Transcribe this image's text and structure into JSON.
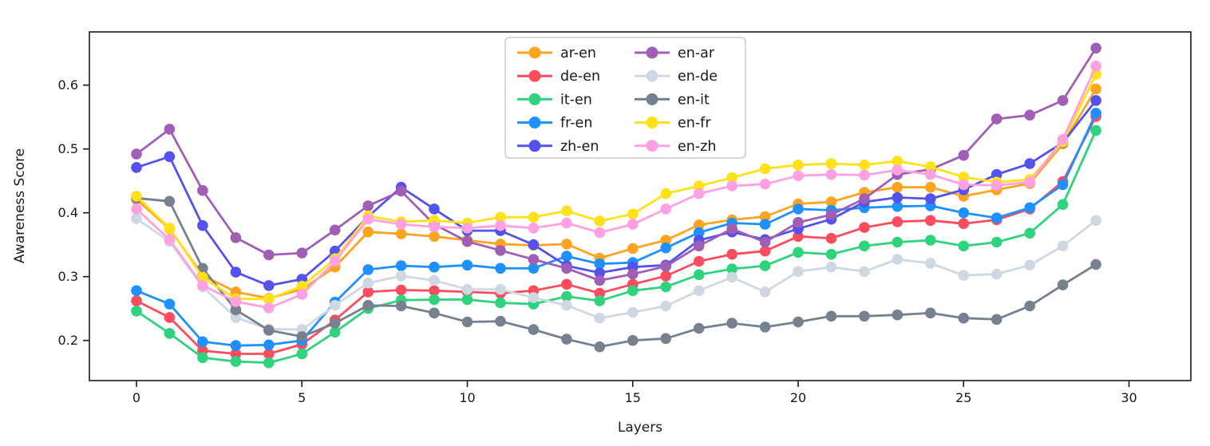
{
  "chart_data": {
    "type": "line",
    "title": "",
    "xlabel": "Layers",
    "ylabel": "Awareness Score",
    "x": [
      0,
      1,
      2,
      3,
      4,
      5,
      6,
      7,
      8,
      9,
      10,
      11,
      12,
      13,
      14,
      15,
      16,
      17,
      18,
      19,
      20,
      21,
      22,
      23,
      24,
      25,
      26,
      27,
      28,
      29
    ],
    "xticks": [
      0,
      5,
      10,
      15,
      20,
      25,
      30
    ],
    "yticks": [
      0.2,
      0.3,
      0.4,
      0.5,
      0.6
    ],
    "xlim": [
      -1.45,
      31.9
    ],
    "ylim": [
      0.137,
      0.683
    ],
    "grid": false,
    "legend_position": "upper center, 2 columns",
    "marker": "circle",
    "series": [
      {
        "name": "ar-en",
        "color": "#ffa321",
        "values": [
          0.421,
          0.375,
          0.302,
          0.276,
          0.266,
          0.28,
          0.315,
          0.37,
          0.367,
          0.363,
          0.357,
          0.351,
          0.349,
          0.351,
          0.329,
          0.344,
          0.357,
          0.381,
          0.389,
          0.394,
          0.414,
          0.417,
          0.432,
          0.44,
          0.44,
          0.426,
          0.436,
          0.446,
          0.508,
          0.594
        ]
      },
      {
        "name": "de-en",
        "color": "#fc4c5d",
        "values": [
          0.262,
          0.236,
          0.184,
          0.179,
          0.179,
          0.194,
          0.232,
          0.276,
          0.279,
          0.278,
          0.276,
          0.274,
          0.278,
          0.288,
          0.274,
          0.288,
          0.301,
          0.324,
          0.335,
          0.34,
          0.363,
          0.36,
          0.377,
          0.386,
          0.388,
          0.383,
          0.389,
          0.406,
          0.449,
          0.551
        ]
      },
      {
        "name": "it-en",
        "color": "#2fd27d",
        "values": [
          0.246,
          0.211,
          0.173,
          0.167,
          0.165,
          0.179,
          0.213,
          0.25,
          0.263,
          0.264,
          0.264,
          0.259,
          0.257,
          0.269,
          0.262,
          0.278,
          0.284,
          0.303,
          0.312,
          0.317,
          0.338,
          0.335,
          0.348,
          0.354,
          0.357,
          0.348,
          0.354,
          0.368,
          0.413,
          0.529
        ]
      },
      {
        "name": "fr-en",
        "color": "#1e90ff",
        "values": [
          0.278,
          0.257,
          0.198,
          0.192,
          0.193,
          0.2,
          0.26,
          0.311,
          0.317,
          0.315,
          0.318,
          0.313,
          0.313,
          0.332,
          0.32,
          0.322,
          0.345,
          0.369,
          0.384,
          0.382,
          0.406,
          0.404,
          0.408,
          0.41,
          0.411,
          0.4,
          0.392,
          0.408,
          0.444,
          0.556
        ]
      },
      {
        "name": "zh-en",
        "color": "#5352ed",
        "values": [
          0.471,
          0.488,
          0.38,
          0.307,
          0.286,
          0.296,
          0.34,
          0.394,
          0.44,
          0.406,
          0.372,
          0.372,
          0.35,
          0.317,
          0.306,
          0.315,
          0.318,
          0.357,
          0.37,
          0.358,
          0.375,
          0.39,
          0.417,
          0.424,
          0.422,
          0.436,
          0.46,
          0.477,
          0.51,
          0.576
        ]
      },
      {
        "name": "en-ar",
        "color": "#a05eb5",
        "values": [
          0.492,
          0.531,
          0.435,
          0.361,
          0.334,
          0.337,
          0.373,
          0.411,
          0.434,
          0.382,
          0.355,
          0.341,
          0.327,
          0.313,
          0.294,
          0.304,
          0.316,
          0.348,
          0.375,
          0.354,
          0.385,
          0.397,
          0.422,
          0.46,
          0.468,
          0.49,
          0.547,
          0.553,
          0.576,
          0.658
        ]
      },
      {
        "name": "en-de",
        "color": "#cfd8e2",
        "values": [
          0.391,
          0.355,
          0.284,
          0.236,
          0.218,
          0.217,
          0.255,
          0.29,
          0.301,
          0.294,
          0.28,
          0.28,
          0.267,
          0.255,
          0.235,
          0.244,
          0.254,
          0.278,
          0.299,
          0.276,
          0.308,
          0.315,
          0.308,
          0.327,
          0.321,
          0.302,
          0.304,
          0.318,
          0.348,
          0.388
        ]
      },
      {
        "name": "en-it",
        "color": "#76808f",
        "values": [
          0.423,
          0.418,
          0.313,
          0.248,
          0.216,
          0.206,
          0.227,
          0.255,
          0.254,
          0.243,
          0.229,
          0.23,
          0.217,
          0.202,
          0.19,
          0.2,
          0.203,
          0.219,
          0.227,
          0.221,
          0.229,
          0.238,
          0.238,
          0.24,
          0.243,
          0.235,
          0.233,
          0.254,
          0.287,
          0.319
        ]
      },
      {
        "name": "en-fr",
        "color": "#ffe11a",
        "values": [
          0.426,
          0.376,
          0.299,
          0.265,
          0.265,
          0.285,
          0.328,
          0.395,
          0.386,
          0.388,
          0.384,
          0.393,
          0.393,
          0.403,
          0.387,
          0.398,
          0.43,
          0.442,
          0.455,
          0.469,
          0.475,
          0.477,
          0.475,
          0.481,
          0.472,
          0.456,
          0.448,
          0.452,
          0.511,
          0.617
        ]
      },
      {
        "name": "en-zh",
        "color": "#ffa0e1",
        "values": [
          0.406,
          0.358,
          0.286,
          0.261,
          0.251,
          0.272,
          0.324,
          0.39,
          0.382,
          0.378,
          0.376,
          0.38,
          0.376,
          0.384,
          0.369,
          0.382,
          0.406,
          0.43,
          0.442,
          0.445,
          0.458,
          0.46,
          0.459,
          0.467,
          0.46,
          0.444,
          0.443,
          0.448,
          0.515,
          0.63
        ]
      }
    ],
    "legend_column1": [
      "ar-en",
      "de-en",
      "it-en",
      "fr-en",
      "zh-en"
    ],
    "legend_column2": [
      "en-ar",
      "en-de",
      "en-it",
      "en-fr",
      "en-zh"
    ],
    "axis_color": "#1a1a1a",
    "background_color": "#ffffff"
  }
}
